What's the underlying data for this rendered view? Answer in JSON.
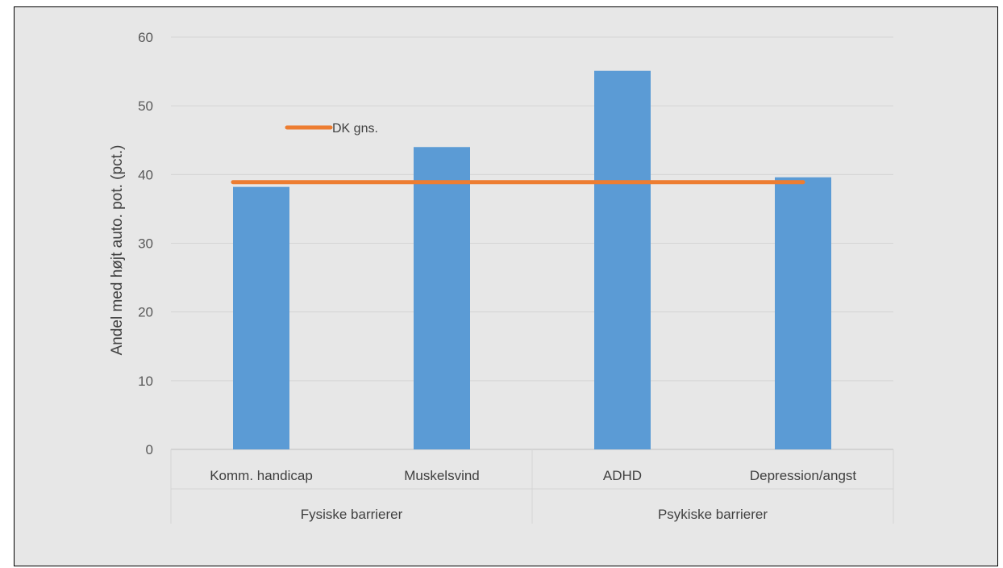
{
  "chart_data": {
    "type": "bar",
    "categories": [
      "Komm. handicap",
      "Muskelsvind",
      "ADHD",
      "Depression/angst"
    ],
    "groups": [
      {
        "label": "Fysiske barrierer",
        "categories": [
          "Komm. handicap",
          "Muskelsvind"
        ]
      },
      {
        "label": "Psykiske barrierer",
        "categories": [
          "ADHD",
          "Depression/angst"
        ]
      }
    ],
    "series": [
      {
        "name": "",
        "type": "bar",
        "values": [
          38.2,
          44.0,
          55.1,
          39.6
        ],
        "color": "#5b9bd5"
      },
      {
        "name": "DK gns.",
        "type": "line",
        "values": [
          38.9,
          38.9,
          38.9,
          38.9
        ],
        "color": "#ed7d31"
      }
    ],
    "ylabel": "Andel med højt auto. pot. (pct.)",
    "xlabel": "",
    "ylim": [
      0,
      60
    ],
    "yticks": [
      0,
      10,
      20,
      30,
      40,
      50,
      60
    ],
    "grid": true,
    "legend": "top-left"
  }
}
